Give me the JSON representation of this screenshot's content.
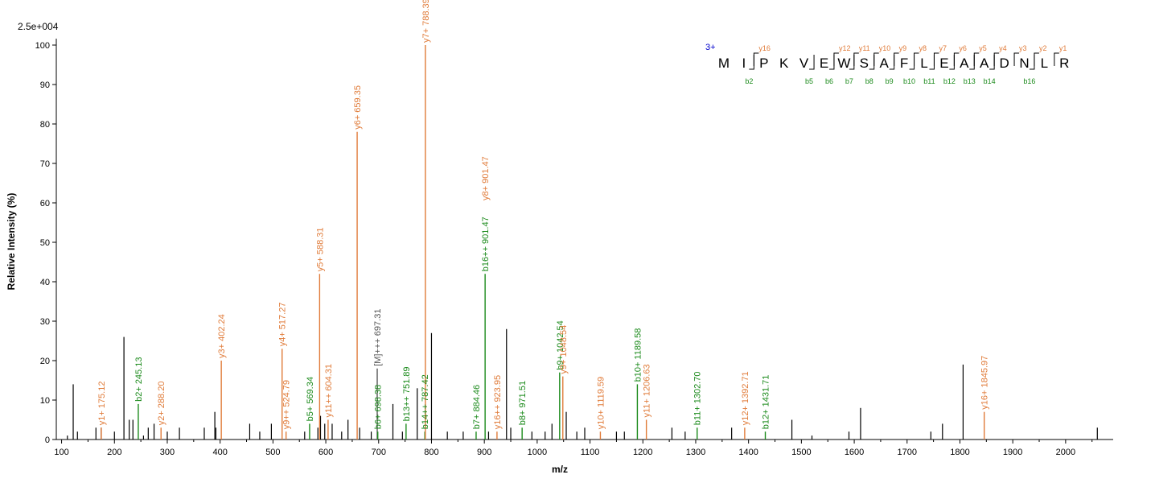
{
  "chart_data": {
    "type": "bar",
    "scale_label": "2.5e+004",
    "xlabel": "m/z",
    "ylabel": "Relative   Intensity (%)",
    "xlim": [
      90,
      2090
    ],
    "ylim": [
      0,
      100
    ],
    "xticks": [
      100,
      200,
      300,
      400,
      500,
      600,
      700,
      800,
      900,
      1000,
      1100,
      1200,
      1300,
      1400,
      1500,
      1600,
      1700,
      1800,
      1900,
      2000
    ],
    "yticks": [
      0,
      10,
      20,
      30,
      40,
      50,
      60,
      70,
      80,
      90,
      100
    ],
    "colors": {
      "y": "#e07b39",
      "b": "#1b8a1b",
      "precursor": "#555555",
      "unassigned": "#000000",
      "seq_charge": "#0000cc"
    },
    "annotated_peaks": [
      {
        "mz": 175.12,
        "intensity": 3,
        "label": "y1+ 175.12",
        "ion": "y"
      },
      {
        "mz": 245.13,
        "intensity": 9,
        "label": "b2+ 245.13",
        "ion": "b"
      },
      {
        "mz": 288.2,
        "intensity": 3,
        "label": "y2+ 288.20",
        "ion": "y"
      },
      {
        "mz": 402.24,
        "intensity": 20,
        "label": "y3+ 402.24",
        "ion": "y"
      },
      {
        "mz": 517.27,
        "intensity": 23,
        "label": "y4+ 517.27",
        "ion": "y"
      },
      {
        "mz": 524.79,
        "intensity": 2,
        "label": "y9++ 524.79",
        "ion": "y"
      },
      {
        "mz": 569.34,
        "intensity": 4,
        "label": "b5+ 569.34",
        "ion": "b"
      },
      {
        "mz": 588.31,
        "intensity": 42,
        "label": "y5+ 588.31",
        "ion": "y"
      },
      {
        "mz": 604.31,
        "intensity": 5,
        "label": "y11++ 604.31",
        "ion": "y"
      },
      {
        "mz": 659.35,
        "intensity": 78,
        "label": "y6+ 659.35",
        "ion": "y"
      },
      {
        "mz": 697.31,
        "intensity": 18,
        "label": "[M]+++ 697.31",
        "ion": "precursor"
      },
      {
        "mz": 698.38,
        "intensity": 2,
        "label": "b6+ 698.38",
        "ion": "b"
      },
      {
        "mz": 751.89,
        "intensity": 4,
        "label": "b13++ 751.89",
        "ion": "b"
      },
      {
        "mz": 787.42,
        "intensity": 2,
        "label": "b14++ 787.42",
        "ion": "b"
      },
      {
        "mz": 788.39,
        "intensity": 100,
        "label": "y7+ 788.39",
        "ion": "y"
      },
      {
        "mz": 884.46,
        "intensity": 2,
        "label": "b7+ 884.46",
        "ion": "b"
      },
      {
        "mz": 901.47,
        "intensity": 42,
        "label": "b16++ 901.47",
        "ion": "b"
      },
      {
        "mz": 901.47,
        "intensity": 60,
        "label": "y8+ 901.47",
        "ion": "y",
        "offset_only": true
      },
      {
        "mz": 923.95,
        "intensity": 2,
        "label": "y16++ 923.95",
        "ion": "y"
      },
      {
        "mz": 971.51,
        "intensity": 3,
        "label": "b8+ 971.51",
        "ion": "b"
      },
      {
        "mz": 1042.54,
        "intensity": 17,
        "label": "b9+ 1042.54",
        "ion": "b"
      },
      {
        "mz": 1048.54,
        "intensity": 16,
        "label": "y9+ 1048.54",
        "ion": "y"
      },
      {
        "mz": 1119.59,
        "intensity": 2,
        "label": "y10+ 1119.59",
        "ion": "y"
      },
      {
        "mz": 1189.58,
        "intensity": 14,
        "label": "b10+ 1189.58",
        "ion": "b"
      },
      {
        "mz": 1206.63,
        "intensity": 5,
        "label": "y11+ 1206.63",
        "ion": "y"
      },
      {
        "mz": 1302.7,
        "intensity": 3,
        "label": "b11+ 1302.70",
        "ion": "b"
      },
      {
        "mz": 1392.71,
        "intensity": 3,
        "label": "y12+ 1392.71",
        "ion": "y"
      },
      {
        "mz": 1431.71,
        "intensity": 2,
        "label": "b12+ 1431.71",
        "ion": "b"
      },
      {
        "mz": 1845.97,
        "intensity": 7,
        "label": "y16+ 1845.97",
        "ion": "y"
      }
    ],
    "unassigned_peaks": [
      [
        111,
        1
      ],
      [
        122,
        14
      ],
      [
        130,
        2
      ],
      [
        165,
        3
      ],
      [
        175,
        3
      ],
      [
        200,
        2
      ],
      [
        218,
        26
      ],
      [
        228,
        5
      ],
      [
        235,
        5
      ],
      [
        255,
        1
      ],
      [
        264,
        3
      ],
      [
        275,
        4
      ],
      [
        300,
        2
      ],
      [
        323,
        3
      ],
      [
        370,
        3
      ],
      [
        390,
        7
      ],
      [
        392,
        3
      ],
      [
        456,
        4
      ],
      [
        475,
        2
      ],
      [
        497,
        4
      ],
      [
        560,
        2
      ],
      [
        585,
        3
      ],
      [
        590,
        6
      ],
      [
        598,
        4
      ],
      [
        612,
        4
      ],
      [
        630,
        2
      ],
      [
        642,
        5
      ],
      [
        664,
        3
      ],
      [
        686,
        2
      ],
      [
        727,
        9
      ],
      [
        745,
        2
      ],
      [
        773,
        13
      ],
      [
        800,
        27
      ],
      [
        830,
        2
      ],
      [
        860,
        2
      ],
      [
        908,
        2
      ],
      [
        942,
        28
      ],
      [
        950,
        3
      ],
      [
        990,
        2
      ],
      [
        1015,
        2
      ],
      [
        1028,
        4
      ],
      [
        1055,
        7
      ],
      [
        1075,
        2
      ],
      [
        1090,
        3
      ],
      [
        1150,
        2
      ],
      [
        1165,
        2
      ],
      [
        1255,
        3
      ],
      [
        1280,
        2
      ],
      [
        1368,
        3
      ],
      [
        1482,
        5
      ],
      [
        1520,
        1
      ],
      [
        1590,
        2
      ],
      [
        1612,
        8
      ],
      [
        1745,
        2
      ],
      [
        1767,
        4
      ],
      [
        1806,
        19
      ],
      [
        2060,
        3
      ]
    ],
    "sequence": {
      "charge": "3+",
      "residues": [
        "M",
        "I",
        "P",
        "K",
        "V",
        "E",
        "W",
        "S",
        "A",
        "F",
        "L",
        "E",
        "A",
        "A",
        "D",
        "N",
        "L",
        "R"
      ],
      "y_labels": [
        {
          "after": 2,
          "text": "y16"
        },
        {
          "after": 6,
          "text": "y12"
        },
        {
          "after": 7,
          "text": "y11"
        },
        {
          "after": 8,
          "text": "y10"
        },
        {
          "after": 9,
          "text": "y9"
        },
        {
          "after": 10,
          "text": "y8"
        },
        {
          "after": 11,
          "text": "y7"
        },
        {
          "after": 12,
          "text": "y6"
        },
        {
          "after": 13,
          "text": "y5"
        },
        {
          "after": 14,
          "text": "y4"
        },
        {
          "after": 15,
          "text": "y3"
        },
        {
          "after": 16,
          "text": "y2"
        },
        {
          "after": 17,
          "text": "y1"
        }
      ],
      "b_labels": [
        {
          "after": 2,
          "text": "b2"
        },
        {
          "after": 5,
          "text": "b5"
        },
        {
          "after": 6,
          "text": "b6"
        },
        {
          "after": 7,
          "text": "b7"
        },
        {
          "after": 8,
          "text": "b8"
        },
        {
          "after": 9,
          "text": "b9"
        },
        {
          "after": 10,
          "text": "b10"
        },
        {
          "after": 11,
          "text": "b11"
        },
        {
          "after": 12,
          "text": "b12"
        },
        {
          "after": 13,
          "text": "b13"
        },
        {
          "after": 14,
          "text": "b14"
        },
        {
          "after": 16,
          "text": "b16"
        }
      ]
    }
  }
}
